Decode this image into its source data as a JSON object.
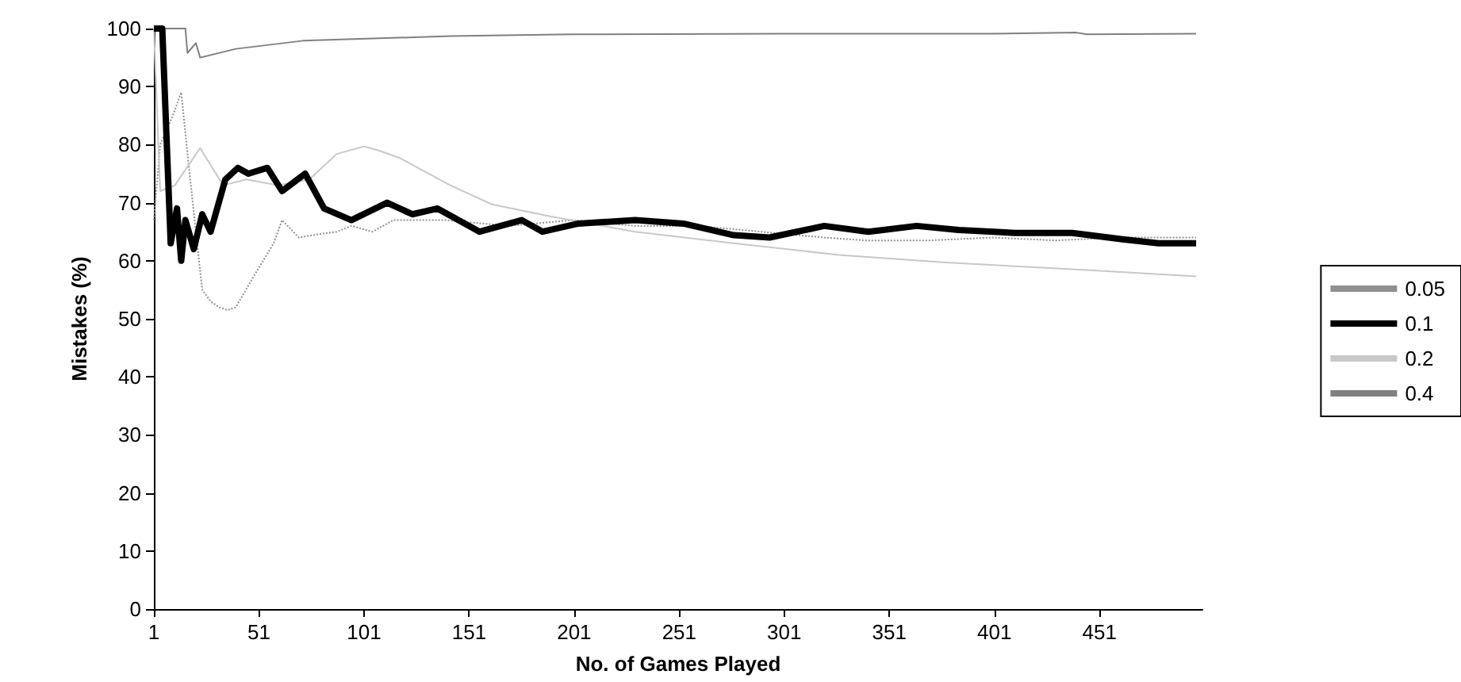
{
  "chart_data": {
    "type": "line",
    "xlabel": "No. of Games Played",
    "ylabel": "Mistakes (%)",
    "xlim": [
      1,
      500
    ],
    "xticks": [
      1,
      51,
      101,
      151,
      201,
      251,
      301,
      351,
      401,
      451
    ],
    "ylim": [
      0,
      100
    ],
    "yticks": [
      0,
      10,
      20,
      30,
      40,
      50,
      60,
      70,
      80,
      90,
      100
    ],
    "grid": false,
    "legend": "right",
    "marker": "none",
    "series": [
      {
        "name": "0.05",
        "color": "#909090",
        "line_style": "dotted",
        "x": [
          1,
          4,
          10,
          14,
          18,
          24,
          28,
          32,
          36,
          40,
          48,
          58,
          62,
          70,
          78,
          88,
          95,
          105,
          115,
          140,
          170,
          200,
          230,
          260,
          290,
          320,
          340,
          370,
          400,
          430,
          460,
          497
        ],
        "values": [
          67,
          80,
          85,
          89,
          75,
          55,
          53,
          52,
          51.5,
          52,
          57,
          63,
          67,
          64,
          64.5,
          65,
          66,
          65,
          67,
          67,
          66,
          67,
          66,
          66,
          65,
          64,
          63.5,
          63.5,
          64,
          63.5,
          64,
          64
        ]
      },
      {
        "name": "0.1",
        "color": "#000000",
        "line_style": "solid",
        "x": [
          1,
          5,
          9,
          12,
          14,
          16,
          20,
          24,
          28,
          35,
          41,
          46,
          55,
          62,
          73,
          82,
          95,
          112,
          124,
          136,
          156,
          176,
          186,
          203,
          230,
          253,
          277,
          294,
          320,
          341,
          364,
          384,
          411,
          438,
          462,
          479,
          497
        ],
        "values": [
          100,
          100,
          63,
          69,
          60,
          67,
          62,
          68,
          65,
          74,
          76,
          75,
          76,
          72,
          75,
          69,
          67,
          70,
          68,
          69,
          65,
          67,
          65,
          66.4,
          67,
          66.4,
          64.4,
          64,
          66,
          65,
          66,
          65.3,
          64.8,
          64.8,
          63.7,
          63,
          63
        ]
      },
      {
        "name": "0.2",
        "color": "#c8c8c8",
        "line_style": "solid",
        "x": [
          1,
          4,
          11,
          23,
          34,
          45,
          60,
          75,
          88,
          101,
          108,
          118,
          142,
          162,
          189,
          230,
          277,
          327,
          378,
          445,
          497
        ],
        "values": [
          100,
          72,
          73,
          79.4,
          73,
          74,
          73,
          74,
          78.4,
          79.7,
          79,
          77.7,
          73,
          69.7,
          67.7,
          65,
          63,
          61,
          59.7,
          58.4,
          57.3
        ]
      },
      {
        "name": "0.4",
        "color": "#808080",
        "line_style": "solid",
        "x": [
          1,
          16,
          17,
          21,
          23,
          40,
          72,
          142,
          200,
          300,
          400,
          440,
          445,
          497
        ],
        "values": [
          100,
          100,
          95.8,
          97.5,
          95,
          96.5,
          97.9,
          98.7,
          99,
          99.1,
          99.1,
          99.3,
          99,
          99.1
        ]
      }
    ]
  }
}
